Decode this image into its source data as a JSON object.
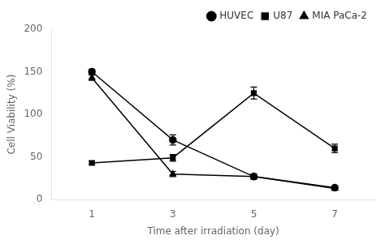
{
  "chart_data": {
    "type": "line",
    "x": [
      1,
      3,
      5,
      7
    ],
    "series": [
      {
        "name": "HUVEC",
        "color": "#000000",
        "marker": "circle",
        "values": [
          150,
          70,
          27,
          14
        ],
        "yerr": [
          3,
          6,
          3,
          2
        ]
      },
      {
        "name": "U87",
        "color": "#000000",
        "marker": "square",
        "values": [
          43,
          49,
          125,
          60
        ],
        "yerr": [
          2,
          4,
          7,
          5
        ]
      },
      {
        "name": "MIA PaCa-2",
        "color": "#000000",
        "marker": "triangle",
        "values": [
          143,
          30,
          27,
          13
        ],
        "yerr": [
          3,
          3,
          3,
          2
        ]
      }
    ],
    "xlabel": "Time after irradiation (day)",
    "ylabel": "Cell Viability (%)",
    "xlim": [
      0,
      8
    ],
    "xticks": [
      1,
      3,
      5,
      7
    ],
    "ylim": [
      0,
      200
    ],
    "yticks": [
      0,
      50,
      100,
      150,
      200
    ],
    "grid": false,
    "legend": "upper right"
  }
}
